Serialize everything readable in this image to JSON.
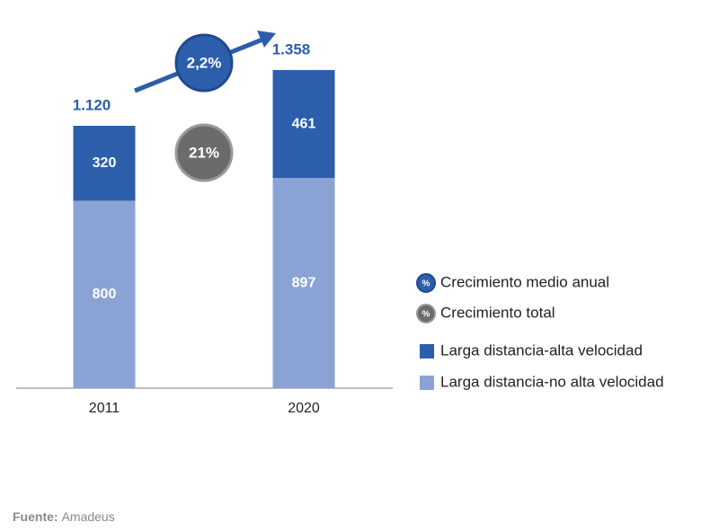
{
  "chart_data": {
    "type": "stacked_bar",
    "categories": [
      "2011",
      "2020"
    ],
    "series": [
      {
        "name": "Larga distancia-no alta velocidad",
        "color": "#8aa3d4",
        "values": [
          800,
          897
        ]
      },
      {
        "name": "Larga distancia-alta velocidad",
        "color": "#2c5eab",
        "values": [
          320,
          461
        ]
      }
    ],
    "totals": {
      "values": [
        1120,
        1358
      ],
      "value_labels": [
        "1.120",
        "1.358"
      ],
      "color": "#2c5eab"
    },
    "ylim": [
      0,
      1400
    ],
    "growth_symbol": "%",
    "growth": [
      {
        "name": "Crecimiento medio anual",
        "label": "2,2%",
        "color": "#2c5eab"
      },
      {
        "name": "Crecimiento total",
        "label": "21%",
        "color": "#6b6b6b"
      }
    ],
    "source": {
      "label": "Fuente:",
      "text": "Amadeus"
    }
  }
}
